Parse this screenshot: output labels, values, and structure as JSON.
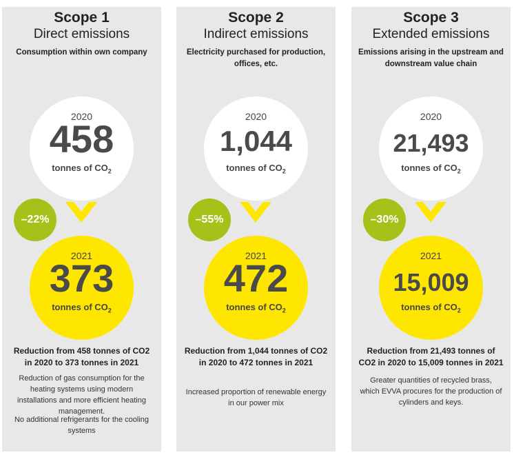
{
  "unit_prefix": "tonnes of CO",
  "unit_sub": "2",
  "scopes": [
    {
      "title": "Scope 1",
      "subtitle": "Direct emissions",
      "description": "Consumption within own company",
      "year_before": "2020",
      "value_before": "458",
      "change": "–22%",
      "year_after": "2021",
      "value_after": "373",
      "reduction": "Reduction from 458 tonnes of CO2 in 2020 to 373 tonnes in 2021",
      "details": [
        "Reduction of gas consumption for the heating systems using modern installations and more efficient heating management.",
        "No additional refrigerants for the cooling systems"
      ]
    },
    {
      "title": "Scope 2",
      "subtitle": "Indirect emissions",
      "description": "Electricity purchased for production, offices, etc.",
      "year_before": "2020",
      "value_before": "1,044",
      "change": "–55%",
      "year_after": "2021",
      "value_after": "472",
      "reduction": "Reduction from 1,044 tonnes of CO2 in 2020 to 472 tonnes in 2021",
      "details": [
        "Increased proportion of renewable energy in our power mix"
      ]
    },
    {
      "title": "Scope 3",
      "subtitle": "Extended emissions",
      "description": "Emissions arising in the upstream and downstream value chain",
      "year_before": "2020",
      "value_before": "21,493",
      "change": "–30%",
      "year_after": "2021",
      "value_after": "15,009",
      "reduction": "Reduction from 21,493 tonnes of CO2 in 2020 to 15,009 tonnes in 2021",
      "details": [
        "Greater quantities of recycled brass, which EVVA procures for the production of cylin­ders and keys."
      ]
    }
  ],
  "colors": {
    "panel": "#e8e8e8",
    "yellow": "#ffe600",
    "green": "#a8c11a",
    "text": "#4a4a4a"
  }
}
